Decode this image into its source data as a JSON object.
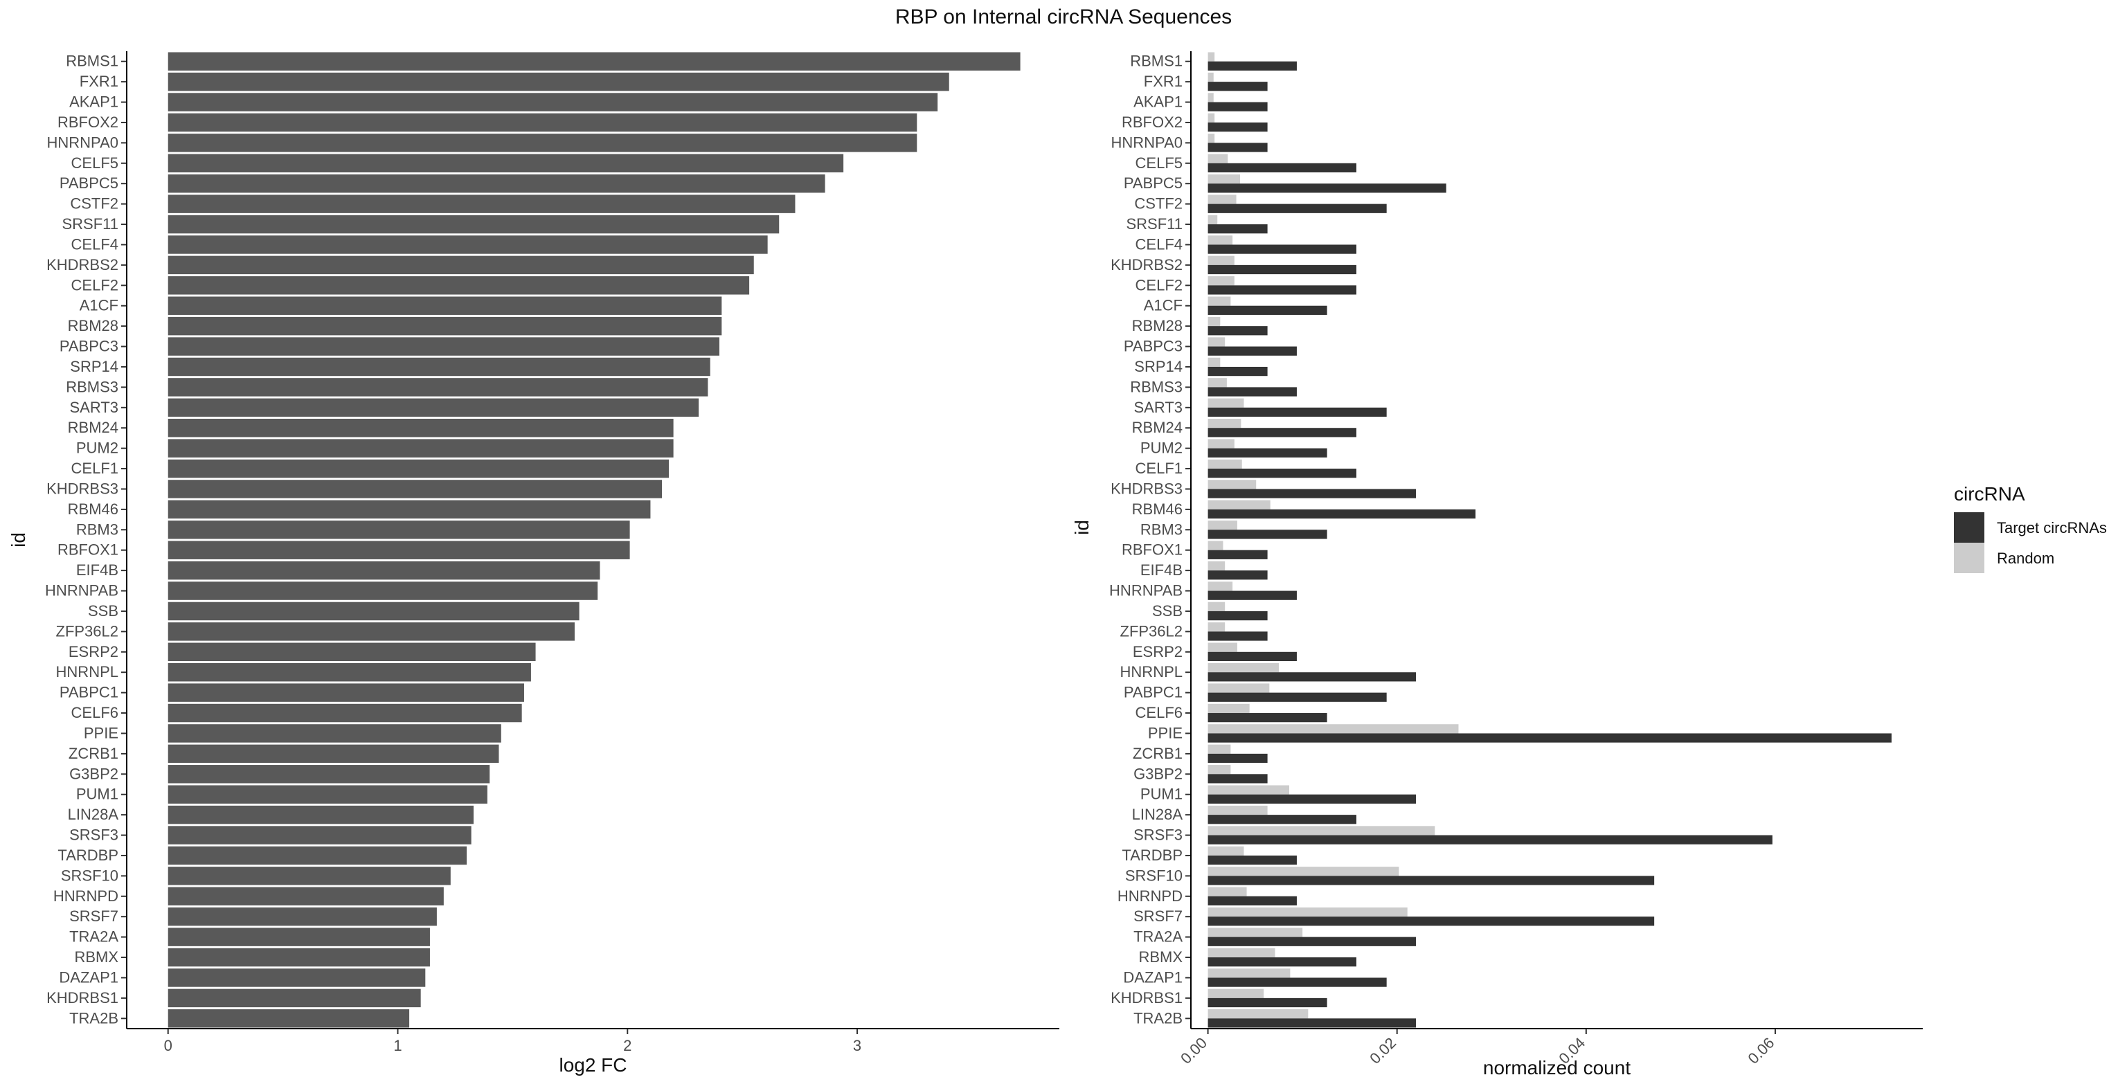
{
  "title": "RBP on Internal circRNA Sequences",
  "chart_data": [
    {
      "type": "bar",
      "orientation": "horizontal",
      "ylabel": "id",
      "xlabel": "log2 FC",
      "xlim": [
        -0.18,
        3.88
      ],
      "xticks": [
        0,
        1,
        2,
        3
      ],
      "bar_color": "#595959",
      "categories": [
        "RBMS1",
        "FXR1",
        "AKAP1",
        "RBFOX2",
        "HNRNPA0",
        "CELF5",
        "PABPC5",
        "CSTF2",
        "SRSF11",
        "CELF4",
        "KHDRBS2",
        "CELF2",
        "A1CF",
        "RBM28",
        "PABPC3",
        "SRP14",
        "RBMS3",
        "SART3",
        "RBM24",
        "PUM2",
        "CELF1",
        "KHDRBS3",
        "RBM46",
        "RBM3",
        "RBFOX1",
        "EIF4B",
        "HNRNPAB",
        "SSB",
        "ZFP36L2",
        "ESRP2",
        "HNRNPL",
        "PABPC1",
        "CELF6",
        "PPIE",
        "ZCRB1",
        "G3BP2",
        "PUM1",
        "LIN28A",
        "SRSF3",
        "TARDBP",
        "SRSF10",
        "HNRNPD",
        "SRSF7",
        "TRA2A",
        "RBMX",
        "DAZAP1",
        "KHDRBS1",
        "TRA2B"
      ],
      "values": [
        3.71,
        3.4,
        3.35,
        3.26,
        3.26,
        2.94,
        2.86,
        2.73,
        2.66,
        2.61,
        2.55,
        2.53,
        2.41,
        2.41,
        2.4,
        2.36,
        2.35,
        2.31,
        2.2,
        2.2,
        2.18,
        2.15,
        2.1,
        2.01,
        2.01,
        1.88,
        1.87,
        1.79,
        1.77,
        1.6,
        1.58,
        1.55,
        1.54,
        1.45,
        1.44,
        1.4,
        1.39,
        1.33,
        1.32,
        1.3,
        1.23,
        1.2,
        1.17,
        1.14,
        1.14,
        1.12,
        1.1,
        1.05
      ]
    },
    {
      "type": "bar",
      "orientation": "horizontal",
      "grouped": true,
      "ylabel": "id",
      "xlabel": "normalized count",
      "xlim": [
        -0.0018,
        0.0756
      ],
      "xticks": [
        0.0,
        0.02,
        0.04,
        0.06
      ],
      "xtick_labels": [
        "0.00",
        "0.02",
        "0.04",
        "0.06"
      ],
      "legend": {
        "title": "circRNA",
        "position": "right"
      },
      "categories": [
        "RBMS1",
        "FXR1",
        "AKAP1",
        "RBFOX2",
        "HNRNPA0",
        "CELF5",
        "PABPC5",
        "CSTF2",
        "SRSF11",
        "CELF4",
        "KHDRBS2",
        "CELF2",
        "A1CF",
        "RBM28",
        "PABPC3",
        "SRP14",
        "RBMS3",
        "SART3",
        "RBM24",
        "PUM2",
        "CELF1",
        "KHDRBS3",
        "RBM46",
        "RBM3",
        "RBFOX1",
        "EIF4B",
        "HNRNPAB",
        "SSB",
        "ZFP36L2",
        "ESRP2",
        "HNRNPL",
        "PABPC1",
        "CELF6",
        "PPIE",
        "ZCRB1",
        "G3BP2",
        "PUM1",
        "LIN28A",
        "SRSF3",
        "TARDBP",
        "SRSF10",
        "HNRNPD",
        "SRSF7",
        "TRA2A",
        "RBMX",
        "DAZAP1",
        "KHDRBS1",
        "TRA2B"
      ],
      "series": [
        {
          "name": "Target circRNAs",
          "color": "#333333",
          "values": [
            0.0094,
            0.0063,
            0.0063,
            0.0063,
            0.0063,
            0.0157,
            0.0252,
            0.0189,
            0.0063,
            0.0157,
            0.0157,
            0.0157,
            0.0126,
            0.0063,
            0.0094,
            0.0063,
            0.0094,
            0.0189,
            0.0157,
            0.0126,
            0.0157,
            0.022,
            0.0283,
            0.0126,
            0.0063,
            0.0063,
            0.0094,
            0.0063,
            0.0063,
            0.0094,
            0.022,
            0.0189,
            0.0126,
            0.0723,
            0.0063,
            0.0063,
            0.022,
            0.0157,
            0.0597,
            0.0094,
            0.0472,
            0.0094,
            0.0472,
            0.022,
            0.0157,
            0.0189,
            0.0126,
            0.022
          ]
        },
        {
          "name": "Random",
          "color": "#cccccc",
          "values": [
            0.0007,
            0.0006,
            0.0006,
            0.0007,
            0.0007,
            0.0021,
            0.0034,
            0.003,
            0.001,
            0.0026,
            0.0028,
            0.0028,
            0.0024,
            0.0013,
            0.0018,
            0.0013,
            0.002,
            0.0038,
            0.0035,
            0.0028,
            0.0036,
            0.0051,
            0.0066,
            0.0031,
            0.0016,
            0.0018,
            0.0026,
            0.0018,
            0.0018,
            0.0031,
            0.0075,
            0.0065,
            0.0044,
            0.0265,
            0.0024,
            0.0024,
            0.0086,
            0.0063,
            0.024,
            0.0038,
            0.0202,
            0.0041,
            0.0211,
            0.01,
            0.0071,
            0.0087,
            0.0059,
            0.0106
          ]
        }
      ]
    }
  ]
}
